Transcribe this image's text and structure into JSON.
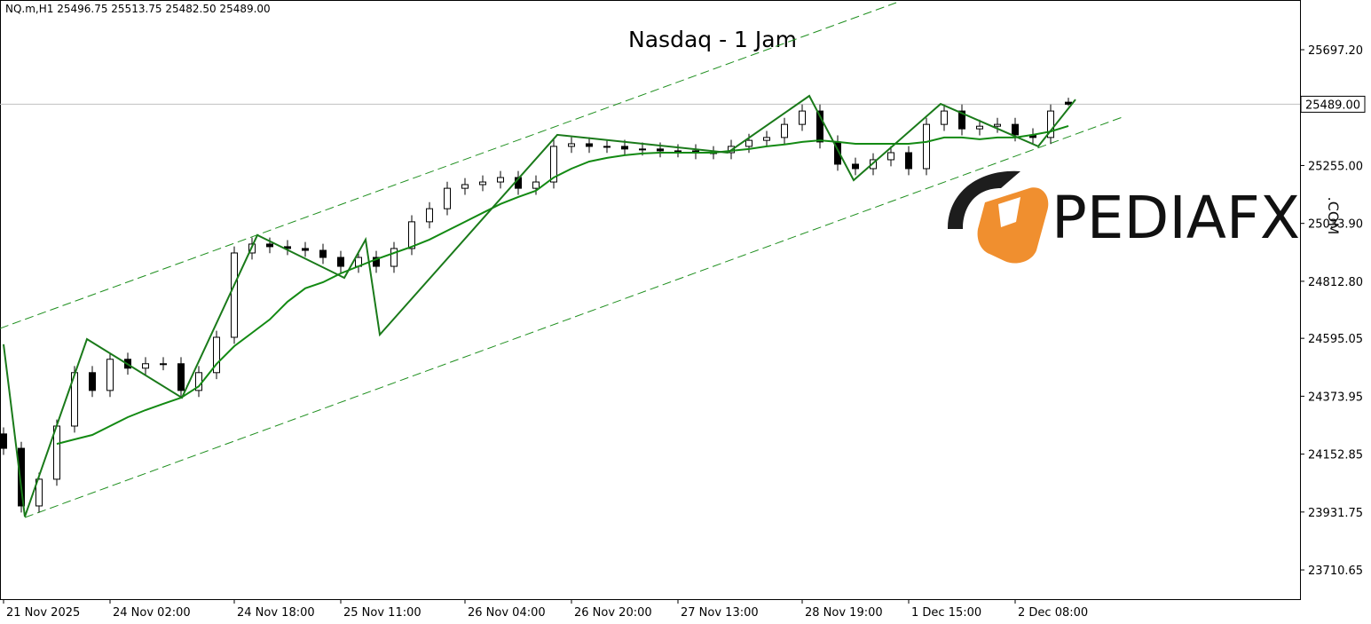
{
  "chart_data": {
    "type": "candlestick",
    "header": "NQ.m,H1  25496.75 25513.75 25482.50 25489.00",
    "title": "Nasdaq - 1 Jam",
    "watermark": {
      "text": "PEDIAFX",
      "suffix": ".COM"
    },
    "categories": [
      "21 Nov 2025",
      null,
      null,
      null,
      null,
      null,
      "24 Nov 02:00",
      null,
      null,
      null,
      null,
      null,
      null,
      "24 Nov 18:00",
      null,
      null,
      null,
      null,
      null,
      "25 Nov 11:00",
      null,
      null,
      null,
      null,
      null,
      null,
      "26 Nov 04:00",
      null,
      null,
      null,
      null,
      null,
      "26 Nov 20:00",
      null,
      null,
      null,
      null,
      null,
      "27 Nov 13:00",
      null,
      null,
      null,
      null,
      null,
      null,
      "28 Nov 19:00",
      null,
      null,
      null,
      null,
      null,
      "1 Dec 15:00",
      null,
      null,
      null,
      null,
      null,
      "2 Dec 08:00",
      null,
      null,
      null
    ],
    "open": [
      24230,
      24175,
      23955,
      24057,
      24260,
      24464,
      24396,
      24515,
      24481,
      24498,
      24498,
      24396,
      24464,
      24599,
      24921,
      24955,
      24945,
      24938,
      24931,
      24904,
      24870,
      24904,
      24870,
      24938,
      25040,
      25090,
      25168,
      25182,
      25192,
      25209,
      25168,
      25192,
      25328,
      25338,
      25328,
      25328,
      25318,
      25318,
      25311,
      25311,
      25304,
      25304,
      25328,
      25351,
      25362,
      25412,
      25463,
      25345,
      25260,
      25243,
      25277,
      25304,
      25243,
      25412,
      25463,
      25395,
      25405,
      25412,
      25372,
      25362,
      25496.75
    ],
    "high": [
      24255,
      24200,
      24082,
      24285,
      24489,
      24489,
      24540,
      24540,
      24523,
      24523,
      24523,
      24489,
      24624,
      24946,
      24980,
      24980,
      24970,
      24963,
      24956,
      24929,
      24929,
      24929,
      24963,
      25065,
      25115,
      25193,
      25207,
      25217,
      25234,
      25234,
      25217,
      25353,
      25363,
      25363,
      25353,
      25353,
      25343,
      25343,
      25336,
      25336,
      25329,
      25353,
      25376,
      25387,
      25437,
      25488,
      25488,
      25370,
      25285,
      25302,
      25329,
      25329,
      25437,
      25488,
      25488,
      25430,
      25437,
      25437,
      25397,
      25488,
      25513.75
    ],
    "low": [
      24150,
      23930,
      23930,
      24032,
      24235,
      24371,
      24371,
      24456,
      24456,
      24473,
      24371,
      24371,
      24439,
      24574,
      24896,
      24920,
      24913,
      24906,
      24879,
      24845,
      24845,
      24845,
      24845,
      24913,
      25015,
      25065,
      25143,
      25157,
      25167,
      25143,
      25143,
      25167,
      25303,
      25303,
      25303,
      25293,
      25293,
      25286,
      25286,
      25279,
      25279,
      25279,
      25303,
      25326,
      25337,
      25387,
      25320,
      25235,
      25218,
      25218,
      25252,
      25218,
      25218,
      25387,
      25370,
      25370,
      25380,
      25347,
      25337,
      25337,
      25482.5
    ],
    "close": [
      24175,
      23955,
      24057,
      24260,
      24464,
      24396,
      24515,
      24481,
      24498,
      24498,
      24396,
      24464,
      24599,
      24921,
      24955,
      24945,
      24938,
      24931,
      24904,
      24870,
      24904,
      24870,
      24938,
      25040,
      25090,
      25168,
      25182,
      25192,
      25209,
      25168,
      25192,
      25328,
      25338,
      25328,
      25328,
      25318,
      25318,
      25311,
      25311,
      25304,
      25304,
      25328,
      25351,
      25362,
      25412,
      25463,
      25345,
      25260,
      25243,
      25277,
      25304,
      25243,
      25412,
      25463,
      25395,
      25405,
      25412,
      25372,
      25362,
      25463,
      25489
    ],
    "ma": {
      "color": "#138a13",
      "values": [
        null,
        null,
        null,
        24192,
        24209,
        24226,
        24260,
        24294,
        24321,
        24345,
        24368,
        24412,
        24497,
        24565,
        24616,
        24667,
        24735,
        24786,
        24809,
        24843,
        24870,
        24897,
        24921,
        24945,
        24972,
        25006,
        25040,
        25074,
        25108,
        25135,
        25159,
        25209,
        25243,
        25270,
        25284,
        25294,
        25301,
        25304,
        25304,
        25304,
        25304,
        25311,
        25318,
        25328,
        25335,
        25345,
        25351,
        25345,
        25338,
        25338,
        25338,
        25338,
        25345,
        25362,
        25362,
        25355,
        25362,
        25362,
        25372,
        25385,
        25406
      ]
    },
    "zigzag": {
      "color": "#1a7a1a",
      "x": [
        0,
        1.2,
        4.7,
        10.05,
        14.3,
        19.2,
        20.4,
        21.2,
        31.2,
        40.8,
        45.4,
        47.9,
        52.8,
        58.3,
        60.4
      ],
      "values": [
        24572,
        23914,
        24592,
        24368,
        24989,
        24826,
        24972,
        24609,
        25372,
        25304,
        25521,
        25199,
        25490,
        25328,
        25507
      ]
    },
    "channel": [
      {
        "color": "#1f8f1f",
        "x": [
          -0.2,
          50.3
        ],
        "values": [
          24633,
          25877
        ]
      },
      {
        "color": "#1f8f1f",
        "x": [
          1.2,
          63.05
        ],
        "values": [
          23911,
          25440
        ]
      }
    ],
    "last_price": {
      "value": 25489,
      "label": "25489.00"
    },
    "xlim": [
      -0.2,
      73.05
    ],
    "ylim": [
      23599,
      25887
    ],
    "yticks": [
      {
        "value": 25697.2,
        "label": "25697.20"
      },
      {
        "value": 25255,
        "label": "25255.00"
      },
      {
        "value": 25033.9,
        "label": "25033.90"
      },
      {
        "value": 24812.8,
        "label": "24812.80"
      },
      {
        "value": 24595.05,
        "label": "24595.05"
      },
      {
        "value": 24373.95,
        "label": "24373.95"
      },
      {
        "value": 24152.85,
        "label": "24152.85"
      },
      {
        "value": 23931.75,
        "label": "23931.75"
      },
      {
        "value": 23710.65,
        "label": "23710.65"
      }
    ]
  }
}
